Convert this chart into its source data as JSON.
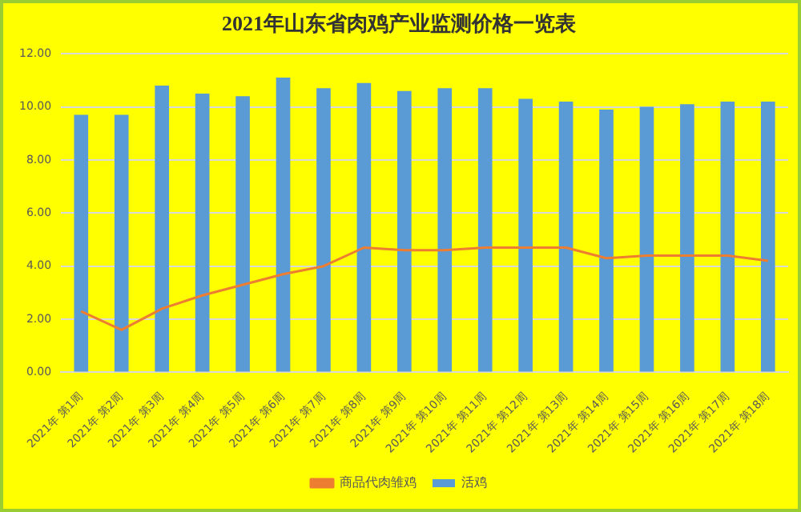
{
  "chart_data": {
    "type": "bar",
    "title": "2021年山东省肉鸡产业监测价格一览表",
    "categories": [
      "2021年 第1周",
      "2021年 第2周",
      "2021年 第3周",
      "2021年 第4周",
      "2021年 第5周",
      "2021年 第6周",
      "2021年 第7周",
      "2021年 第8周",
      "2021年 第9周",
      "2021年 第10周",
      "2021年 第11周",
      "2021年 第12周",
      "2021年 第13周",
      "2021年 第14周",
      "2021年 第15周",
      "2021年 第16周",
      "2021年 第17周",
      "2021年 第18周"
    ],
    "series": [
      {
        "name": "活鸡",
        "color": "#5b9bd5",
        "values": [
          9.7,
          9.7,
          10.8,
          10.5,
          10.4,
          11.1,
          10.7,
          10.9,
          10.6,
          10.7,
          10.7,
          10.3,
          10.2,
          9.9,
          10.0,
          10.1,
          10.2,
          10.2
        ]
      },
      {
        "name": "商品代肉雏鸡",
        "type": "line",
        "color": "#ed7d31",
        "values": [
          2.3,
          1.6,
          2.4,
          2.9,
          3.3,
          3.7,
          4.0,
          4.7,
          4.6,
          4.6,
          4.7,
          4.7,
          4.7,
          4.3,
          4.4,
          4.4,
          4.4,
          4.2
        ]
      }
    ],
    "ylim": [
      0,
      12
    ],
    "yticks": [
      {
        "value": 0,
        "label": "0.00"
      },
      {
        "value": 2,
        "label": "2.00"
      },
      {
        "value": 4,
        "label": "4.00"
      },
      {
        "value": 6,
        "label": "6.00"
      },
      {
        "value": 8,
        "label": "8.00"
      },
      {
        "value": 10,
        "label": "10.00"
      },
      {
        "value": 12,
        "label": "12.00"
      }
    ],
    "grid": "y",
    "legend": "bottom",
    "marker": "none"
  }
}
